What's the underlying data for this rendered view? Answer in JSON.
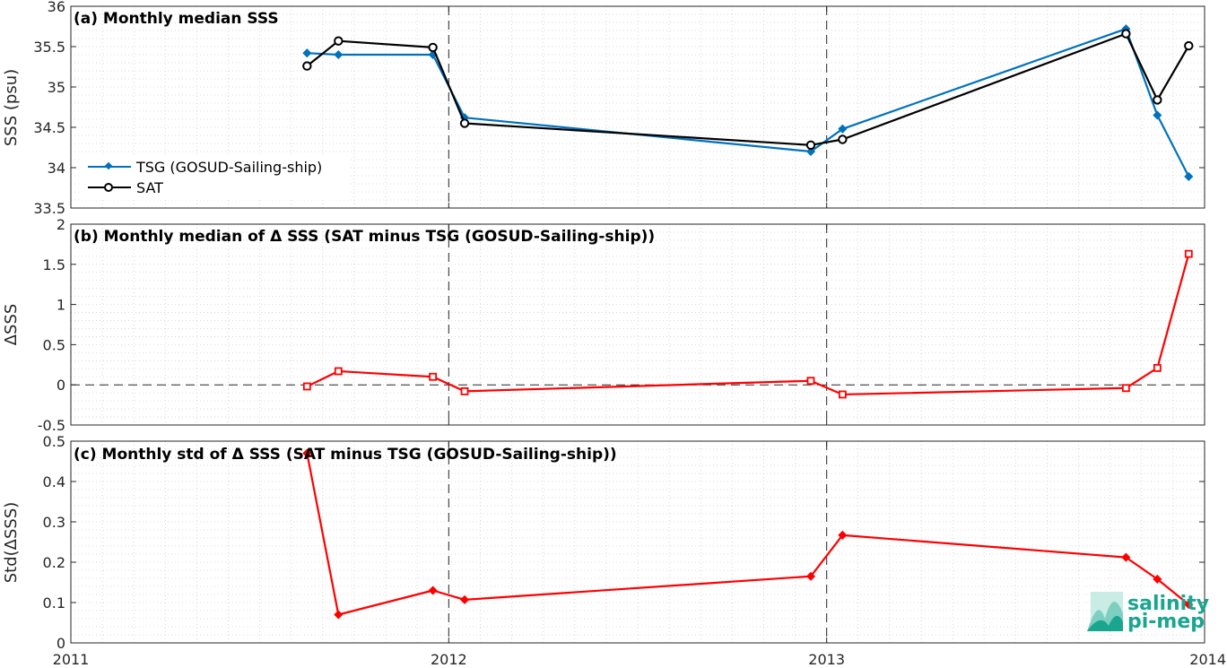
{
  "colors": {
    "tsg": "#0072BD",
    "sat": "#000000",
    "delta": "#FF0000",
    "grid": "#d0d0d0",
    "axis": "#262626",
    "logo": "#1aa58f"
  },
  "logo": {
    "line1": "salinity",
    "line2": "pi-mep"
  },
  "x_axis": {
    "ticks": [
      {
        "label": "2011",
        "t": 2011.0
      },
      {
        "label": "2012",
        "t": 2012.0
      },
      {
        "label": "2013",
        "t": 2013.0
      },
      {
        "label": "2014",
        "t": 2014.0
      }
    ],
    "vlines": [
      2012.0,
      2013.0
    ]
  },
  "chart_data": [
    {
      "type": "line",
      "title": "(a) Monthly median SSS",
      "xlabel": "",
      "ylabel": "SSS (psu)",
      "xlim": [
        2011.0,
        2014.0
      ],
      "ylim": [
        33.5,
        36
      ],
      "yticks": [
        "36",
        "35.5",
        "35",
        "34.5",
        "34",
        "33.5"
      ],
      "grid": true,
      "legend_position": "lower-left",
      "series": [
        {
          "name": "TSG (GOSUD-Sailing-ship)",
          "marker": "diamond",
          "color": "#0072BD",
          "x": [
            2011.625,
            2011.708,
            2011.958,
            2012.042,
            2012.958,
            2013.042,
            2013.792,
            2013.875,
            2013.958
          ],
          "y": [
            35.42,
            35.4,
            35.4,
            34.62,
            34.2,
            34.48,
            35.72,
            34.65,
            33.89
          ]
        },
        {
          "name": "SAT",
          "marker": "circle",
          "color": "#000000",
          "x": [
            2011.625,
            2011.708,
            2011.958,
            2012.042,
            2012.958,
            2013.042,
            2013.792,
            2013.875,
            2013.958
          ],
          "y": [
            35.26,
            35.57,
            35.49,
            34.55,
            34.28,
            34.35,
            35.66,
            34.84,
            35.51
          ]
        }
      ]
    },
    {
      "type": "line",
      "title": "(b) Monthly median of Δ SSS (SAT minus TSG (GOSUD-Sailing-ship))",
      "xlabel": "",
      "ylabel": "ΔSSS",
      "xlim": [
        2011.0,
        2014.0
      ],
      "ylim": [
        -0.5,
        2
      ],
      "yticks": [
        "2",
        "1.5",
        "1",
        "0.5",
        "0",
        "-0.5"
      ],
      "grid": true,
      "zero_line": true,
      "series": [
        {
          "marker": "square",
          "color": "#FF0000",
          "x": [
            2011.625,
            2011.708,
            2011.958,
            2012.042,
            2012.958,
            2013.042,
            2013.792,
            2013.875,
            2013.958
          ],
          "y": [
            -0.02,
            0.17,
            0.1,
            -0.08,
            0.05,
            -0.12,
            -0.04,
            0.21,
            1.63
          ]
        }
      ]
    },
    {
      "type": "line",
      "title": "(c) Monthly std of Δ SSS (SAT minus TSG (GOSUD-Sailing-ship))",
      "xlabel": "",
      "ylabel": "Std(ΔSSS)",
      "xlim": [
        2011.0,
        2014.0
      ],
      "ylim": [
        0,
        0.5
      ],
      "yticks": [
        "0.5",
        "0.4",
        "0.3",
        "0.2",
        "0.1",
        "0"
      ],
      "grid": true,
      "series": [
        {
          "marker": "diamond",
          "color": "#FF0000",
          "x": [
            2011.625,
            2011.708,
            2011.958,
            2012.042,
            2012.958,
            2013.042,
            2013.792,
            2013.875,
            2013.958
          ],
          "y": [
            0.47,
            0.07,
            0.13,
            0.107,
            0.165,
            0.267,
            0.212,
            0.158,
            0.095
          ]
        }
      ]
    }
  ]
}
